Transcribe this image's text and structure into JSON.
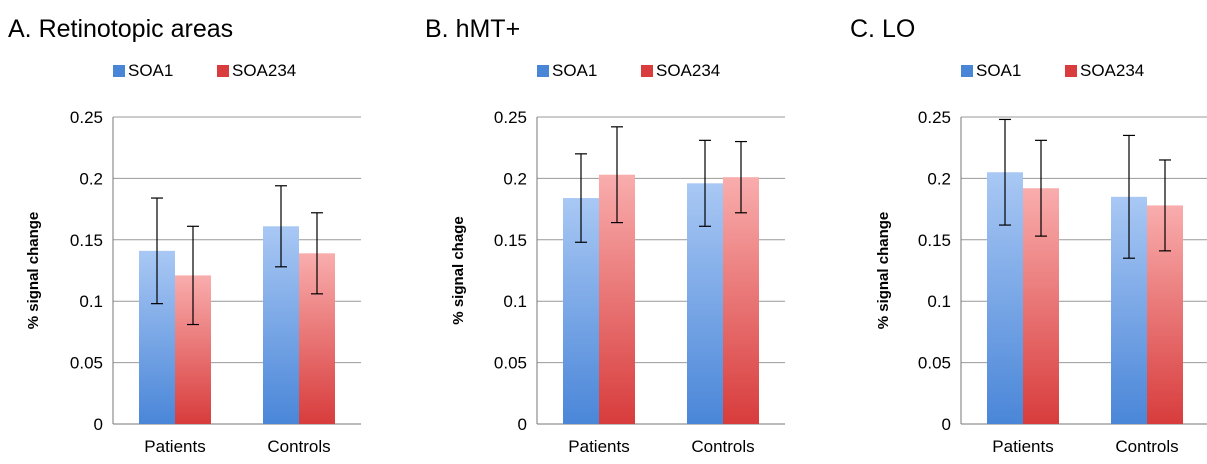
{
  "chart_data": [
    {
      "type": "bar",
      "title": "A. Retinotopic areas",
      "ylabel": "% signal change",
      "xlabel": "",
      "categories": [
        "Patients",
        "Controls"
      ],
      "series": [
        {
          "name": "SOA1",
          "values": [
            0.141,
            0.161
          ],
          "errors": [
            0.043,
            0.033
          ]
        },
        {
          "name": "SOA234",
          "values": [
            0.121,
            0.139
          ],
          "errors": [
            0.04,
            0.033
          ]
        }
      ],
      "ylim": [
        0,
        0.25
      ],
      "yticks": [
        "0",
        "0.05",
        "0.1",
        "0.15",
        "0.2",
        "0.25"
      ],
      "grid": true,
      "legend": "top"
    },
    {
      "type": "bar",
      "title": "B. hMT+",
      "ylabel": "% signal chage",
      "xlabel": "",
      "categories": [
        "Patients",
        "Controls"
      ],
      "series": [
        {
          "name": "SOA1",
          "values": [
            0.184,
            0.196
          ],
          "errors": [
            0.036,
            0.035
          ]
        },
        {
          "name": "SOA234",
          "values": [
            0.203,
            0.201
          ],
          "errors": [
            0.039,
            0.029
          ]
        }
      ],
      "ylim": [
        0,
        0.25
      ],
      "yticks": [
        "0",
        "0.05",
        "0.1",
        "0.15",
        "0.2",
        "0.25"
      ],
      "grid": true,
      "legend": "top"
    },
    {
      "type": "bar",
      "title": "C. LO",
      "ylabel": "% signal change",
      "xlabel": "",
      "categories": [
        "Patients",
        "Controls"
      ],
      "series": [
        {
          "name": "SOA1",
          "values": [
            0.205,
            0.185
          ],
          "errors": [
            0.043,
            0.05
          ]
        },
        {
          "name": "SOA234",
          "values": [
            0.192,
            0.178
          ],
          "errors": [
            0.039,
            0.037
          ]
        }
      ],
      "ylim": [
        0,
        0.25
      ],
      "yticks": [
        "0",
        "0.05",
        "0.1",
        "0.15",
        "0.2",
        "0.25"
      ],
      "grid": true,
      "legend": "top"
    }
  ],
  "colors": {
    "SOA1": {
      "top": "#a9c8f4",
      "bottom": "#4a86d8"
    },
    "SOA234": {
      "top": "#f9adad",
      "bottom": "#d83c3c"
    },
    "grid": "#999999",
    "axis": "#777777",
    "errorbar": "#000000"
  }
}
